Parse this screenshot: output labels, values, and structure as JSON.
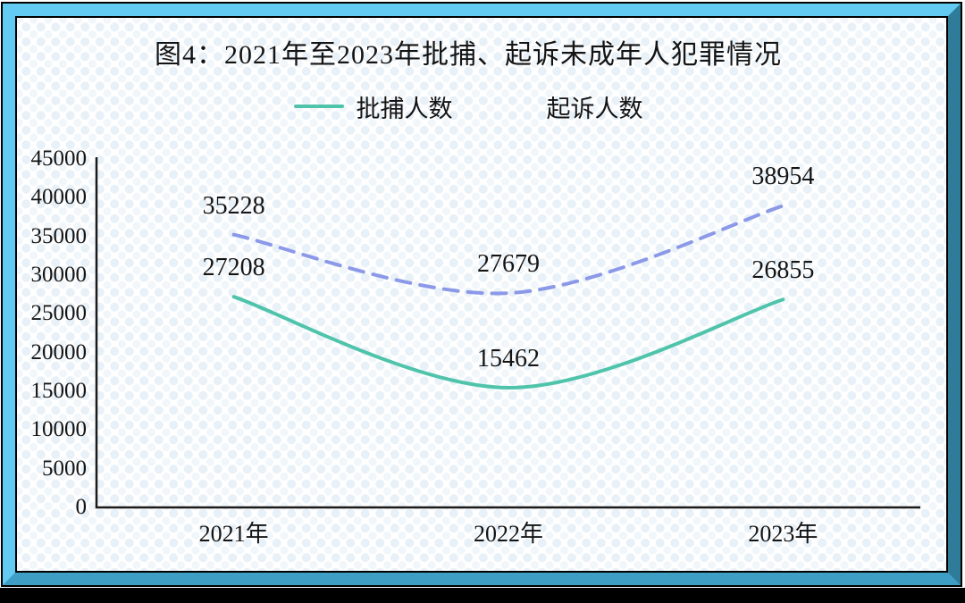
{
  "theme": {
    "frame_top": "#63cbf1",
    "frame_left": "#63cbf1",
    "frame_right": "#2e7c99",
    "frame_bottom": "#3f9ec3",
    "shadow": "#000000",
    "pattern_dot": "#e8f1f8",
    "text": "#141414",
    "axis_color": "#1a1a1a"
  },
  "chart_data": {
    "type": "line",
    "title": "图4：2021年至2023年批捕、起诉未成年人犯罪情况",
    "categories": [
      "2021年",
      "2022年",
      "2023年"
    ],
    "series": [
      {
        "name": "批捕人数",
        "style": "solid",
        "color": "#4fc4ab",
        "values": [
          27208,
          15462,
          26855
        ]
      },
      {
        "name": "起诉人数",
        "style": "dashed",
        "color": "#8b99e8",
        "values": [
          35228,
          27679,
          38954
        ]
      }
    ],
    "ylim": [
      0,
      45000
    ],
    "ytick_step": 5000,
    "ytick_labels": [
      "0",
      "5000",
      "10000",
      "15000",
      "20000",
      "25000",
      "30000",
      "35000",
      "40000",
      "45000"
    ],
    "grid": false,
    "legend_position": "top",
    "line_smoothing": "spline"
  }
}
